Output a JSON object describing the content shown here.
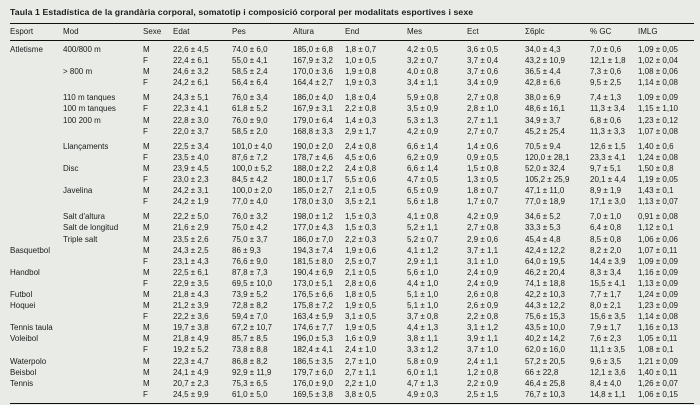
{
  "title": "Taula 1 Estadística de la grandària corporal, somatotip i composició corporal per modalitats esportives i sexe",
  "colors": {
    "background": "#e9ebe7",
    "text": "#1b1b1b",
    "rule": "#111111"
  },
  "table": {
    "columns": [
      "Esport",
      "Mod",
      "Sexe",
      "Edat",
      "Pes",
      "Altura",
      "End",
      "Mes",
      "Ect",
      "Σ6plc",
      "% GC",
      "IMLG"
    ],
    "rows": [
      {
        "gap_before": false,
        "cells": [
          "Atletisme",
          "400/800 m",
          "M",
          "22,6 ± 4,5",
          "74,0 ± 6,0",
          "185,0 ± 6,8",
          "1,8 ± 0,7",
          "4,2 ± 0,5",
          "3,6 ± 0,5",
          "34,0 ± 4,3",
          "7,0 ± 0,6",
          "1,09 ± 0,05"
        ]
      },
      {
        "gap_before": false,
        "cells": [
          "",
          "",
          "F",
          "22,4 ± 6,1",
          "55,0 ± 4,1",
          "167,9 ± 3,2",
          "1,0 ± 0,5",
          "3,2 ± 0,7",
          "3,7 ± 0,4",
          "43,2 ± 10,9",
          "12,1 ± 1,8",
          "1,02 ± 0,04"
        ]
      },
      {
        "gap_before": false,
        "cells": [
          "",
          "> 800 m",
          "M",
          "24,6 ± 3,2",
          "58,5 ± 2,4",
          "170,0 ± 3,6",
          "1,9 ± 0,8",
          "4,0 ± 0,8",
          "3,7 ± 0,6",
          "36,5 ± 4,4",
          "7,3 ± 0,6",
          "1,08 ± 0,06"
        ]
      },
      {
        "gap_before": false,
        "cells": [
          "",
          "",
          "F",
          "24,2 ± 6,1",
          "56,4 ± 6,4",
          "164,4 ± 2,7",
          "1,9 ± 0,3",
          "3,4 ± 1,1",
          "3,4 ± 0,9",
          "42,8 ± 6,6",
          "9,5 ± 2,5",
          "1,14 ± 0,08"
        ]
      },
      {
        "gap_before": true,
        "cells": [
          "",
          "110 m tanques",
          "M",
          "24,3 ± 5,1",
          "76,0 ± 3,4",
          "186,0 ± 4,0",
          "1,8 ± 0,4",
          "5,9 ± 0,8",
          "2,7 ± 0,8",
          "38,0 ± 6,9",
          "7,4 ± 1,3",
          "1,09 ± 0,09"
        ]
      },
      {
        "gap_before": false,
        "cells": [
          "",
          "100 m tanques",
          "F",
          "22,3 ± 4,1",
          "61,8 ± 5,2",
          "167,9 ± 3,1",
          "2,2 ± 0,8",
          "3,5 ± 0,9",
          "2,8 ± 1,0",
          "48,6 ± 16,1",
          "11,3 ± 3,4",
          "1,15 ± 1,10"
        ]
      },
      {
        "gap_before": false,
        "cells": [
          "",
          "100 200 m",
          "M",
          "22,8 ± 3,0",
          "76,0 ± 9,0",
          "179,0 ± 6,4",
          "1,4 ± 0,3",
          "5,3 ± 1,3",
          "2,7 ± 1,1",
          "34,9 ± 3,7",
          "6,8 ± 0,6",
          "1,23 ± 0,12"
        ]
      },
      {
        "gap_before": false,
        "cells": [
          "",
          "",
          "F",
          "22,0 ± 3,7",
          "58,5 ± 2,0",
          "168,8 ± 3,3",
          "2,9 ± 1,7",
          "4,2 ± 0,9",
          "2,7 ± 0,7",
          "45,2 ± 25,4",
          "11,3 ± 3,3",
          "1,07 ± 0,08"
        ]
      },
      {
        "gap_before": true,
        "cells": [
          "",
          "Llançaments",
          "M",
          "22,5 ± 3,4",
          "101,0 ± 4,0",
          "190,0 ± 2,0",
          "2,4 ± 0,8",
          "6,6 ± 1,4",
          "1,4 ± 0,6",
          "70,5 ± 9,4",
          "12,6 ± 1,5",
          "1,40 ± 0,6"
        ]
      },
      {
        "gap_before": false,
        "cells": [
          "",
          "",
          "F",
          "23,5 ± 4,0",
          "87,6 ± 7,2",
          "178,7 ± 4,6",
          "4,5 ± 0,6",
          "6,2 ± 0,9",
          "0,9 ± 0,5",
          "120,0 ± 28,1",
          "23,3 ± 4,1",
          "1,24 ± 0,08"
        ]
      },
      {
        "gap_before": false,
        "cells": [
          "",
          "Disc",
          "M",
          "23,9 ± 4,5",
          "100,0 ± 5,2",
          "188,0 ± 2,2",
          "2,4 ± 0,8",
          "6,6 ± 1,4",
          "1,5 ± 0,8",
          "52,0 ± 32,4",
          "9,7 ± 5,1",
          "1,50 ± 0,8"
        ]
      },
      {
        "gap_before": false,
        "cells": [
          "",
          "",
          "F",
          "23,0 ± 2,3",
          "84,5 ± 4,2",
          "180,0 ± 1,7",
          "5,5 ± 0,6",
          "4,7 ± 0,5",
          "1,3 ± 0,5",
          "105,2 ± 25,9",
          "20,1 ± 4,4",
          "1,19 ± 0,05"
        ]
      },
      {
        "gap_before": false,
        "cells": [
          "",
          "Javelina",
          "M",
          "24,2 ± 3,1",
          "100,0 ± 2,0",
          "185,0 ± 2,7",
          "2,1 ± 0,5",
          "6,5 ± 0,9",
          "1,8 ± 0,7",
          "47,1 ± 11,0",
          "8,9 ± 1,9",
          "1,43 ± 0,1"
        ]
      },
      {
        "gap_before": false,
        "cells": [
          "",
          "",
          "F",
          "24,2 ± 1,9",
          "77,0 ± 4,0",
          "178,0 ± 3,0",
          "3,5 ± 2,1",
          "5,6 ± 1,8",
          "1,7 ± 0,7",
          "77,0 ± 18,9",
          "17,1 ± 3,0",
          "1,13 ± 0,07"
        ]
      },
      {
        "gap_before": true,
        "cells": [
          "",
          "Salt d'altura",
          "M",
          "22,2 ± 5,0",
          "76,0 ± 3,2",
          "198,0 ± 1,2",
          "1,5 ± 0,3",
          "4,1 ± 0,8",
          "4,2 ± 0,9",
          "34,6 ± 5,2",
          "7,0 ± 1,0",
          "0,91 ± 0,08"
        ]
      },
      {
        "gap_before": false,
        "cells": [
          "",
          "Salt de longitud",
          "M",
          "21,6 ± 2,9",
          "75,0 ± 4,2",
          "177,0 ± 4,3",
          "1,5 ± 0,3",
          "5,2 ± 1,1",
          "2,7 ± 0,8",
          "33,3 ± 5,3",
          "6,4 ± 0,8",
          "1,12 ± 0,1"
        ]
      },
      {
        "gap_before": false,
        "cells": [
          "",
          "Triple salt",
          "M",
          "23,5 ± 2,6",
          "75,0 ± 3,7",
          "186,0 ± 7,0",
          "2,2 ± 0,3",
          "5,2 ± 0,7",
          "2,9 ± 0,6",
          "45,4 ± 4,8",
          "8,5 ± 0,8",
          "1,06 ± 0,06"
        ]
      },
      {
        "gap_before": false,
        "cells": [
          "Basquetbol",
          "",
          "M",
          "24,3 ± 2,5",
          "86 ± 9,3",
          "194,3 ± 7,4",
          "1,9 ± 0,6",
          "4,1 ± 1,2",
          "3,7 ± 1,1",
          "42,4 ± 12,2",
          "8,2 ± 2,0",
          "1,07 ± 0,11"
        ]
      },
      {
        "gap_before": false,
        "cells": [
          "",
          "",
          "F",
          "23,1 ± 4,3",
          "76,6 ± 9,0",
          "181,5 ± 8,0",
          "2,5 ± 0,7",
          "2,9 ± 1,1",
          "3,1 ± 1,0",
          "64,0 ± 19,5",
          "14,4 ± 3,9",
          "1,09 ± 0,09"
        ]
      },
      {
        "gap_before": false,
        "cells": [
          "Handbol",
          "",
          "M",
          "22,5 ± 6,1",
          "87,8 ± 7,3",
          "190,4 ± 6,9",
          "2,1 ± 0,5",
          "5,6 ± 1,0",
          "2,4 ± 0,9",
          "46,2 ± 20,4",
          "8,3 ± 3,4",
          "1,16 ± 0,09"
        ]
      },
      {
        "gap_before": false,
        "cells": [
          "",
          "",
          "F",
          "22,9 ± 3,5",
          "69,5 ± 10,0",
          "173,0 ± 5,1",
          "2,8 ± 0,6",
          "4,4 ± 1,0",
          "2,4 ± 0,9",
          "74,1 ± 18,8",
          "15,5 ± 4,1",
          "1,13 ± 0,09"
        ]
      },
      {
        "gap_before": false,
        "cells": [
          "Futbol",
          "",
          "M",
          "21,8 ± 4,3",
          "73,9 ± 5,2",
          "176,5 ± 6,6",
          "1,8 ± 0,5",
          "5,1 ± 1,0",
          "2,6 ± 0,8",
          "42,2 ± 10,3",
          "7,7 ± 1,7",
          "1,24 ± 0,09"
        ]
      },
      {
        "gap_before": false,
        "cells": [
          "Hoquei",
          "",
          "M",
          "21,2 ± 3,9",
          "72,8 ± 8,2",
          "175,8 ± 7,2",
          "1,9 ± 0,5",
          "5,1 ± 1,0",
          "2,6 ± 0,9",
          "44,3 ± 12,2",
          "8,0 ± 2,1",
          "1,23 ± 0,09"
        ]
      },
      {
        "gap_before": false,
        "cells": [
          "",
          "",
          "F",
          "22,2 ± 3,6",
          "59,4 ± 7,0",
          "163,4 ± 5,9",
          "3,1 ± 0,5",
          "3,7 ± 0,8",
          "2,2 ± 0,8",
          "75,6 ± 15,3",
          "15,6 ± 3,5",
          "1,14 ± 0,08"
        ]
      },
      {
        "gap_before": false,
        "cells": [
          "Tennis taula",
          "",
          "M",
          "19,7 ± 3,8",
          "67,2 ± 10,7",
          "174,6 ± 7,7",
          "1,9 ± 0,5",
          "4,4 ± 1,3",
          "3,1 ± 1,2",
          "43,5 ± 10,0",
          "7,9 ± 1,7",
          "1,16 ± 0,13"
        ]
      },
      {
        "gap_before": false,
        "cells": [
          "Voleibol",
          "",
          "M",
          "21,8 ± 4,9",
          "85,7 ± 8,5",
          "196,0 ± 5,3",
          "1,6 ± 0,9",
          "3,8 ± 1,1",
          "3,9 ± 1,1",
          "40,2 ± 14,2",
          "7,6 ± 2,3",
          "1,05 ± 0,11"
        ]
      },
      {
        "gap_before": false,
        "cells": [
          "",
          "",
          "F",
          "19,2 ± 5,2",
          "73,8 ± 8,8",
          "182,4 ± 4,1",
          "2,4 ± 1,0",
          "3,3 ± 1,2",
          "3,7 ± 1,0",
          "62,0 ± 16,0",
          "11,1 ± 3,5",
          "1,08 ± 0,1"
        ]
      },
      {
        "gap_before": false,
        "cells": [
          "Waterpolo",
          "",
          "M",
          "22,3 ± 4,7",
          "86,8 ± 8,2",
          "186,5 ± 3,5",
          "2,7 ± 1,0",
          "5,8 ± 0,9",
          "2,4 ± 1,1",
          "57,2 ± 20,5",
          "9,6 ± 3,5",
          "1,21 ± 0,09"
        ]
      },
      {
        "gap_before": false,
        "cells": [
          "Beisbol",
          "",
          "M",
          "24,1 ± 4,9",
          "92,9 ± 11,9",
          "179,7 ± 6,0",
          "2,7 ± 1,1",
          "6,0 ± 1,1",
          "1,2 ± 0,8",
          "66 ± 22,8",
          "12,1 ± 3,6",
          "1,40 ± 0,11"
        ]
      },
      {
        "gap_before": false,
        "cells": [
          "Tennis",
          "",
          "M",
          "20,7 ± 2,3",
          "75,3 ± 6,5",
          "176,0 ± 9,0",
          "2,2 ± 1,0",
          "4,7 ± 1,3",
          "2,2 ± 0,9",
          "46,4 ± 25,8",
          "8,4 ± 4,0",
          "1,26 ± 0,07"
        ]
      },
      {
        "gap_before": false,
        "cells": [
          "",
          "",
          "F",
          "24,5 ± 9,9",
          "61,0 ± 5,0",
          "169,5 ± 3,8",
          "3,8 ± 0,5",
          "4,9 ± 0,3",
          "2,5 ± 1,5",
          "76,7 ± 10,3",
          "14,8 ± 1,1",
          "1,06 ± 0,15"
        ]
      }
    ]
  }
}
